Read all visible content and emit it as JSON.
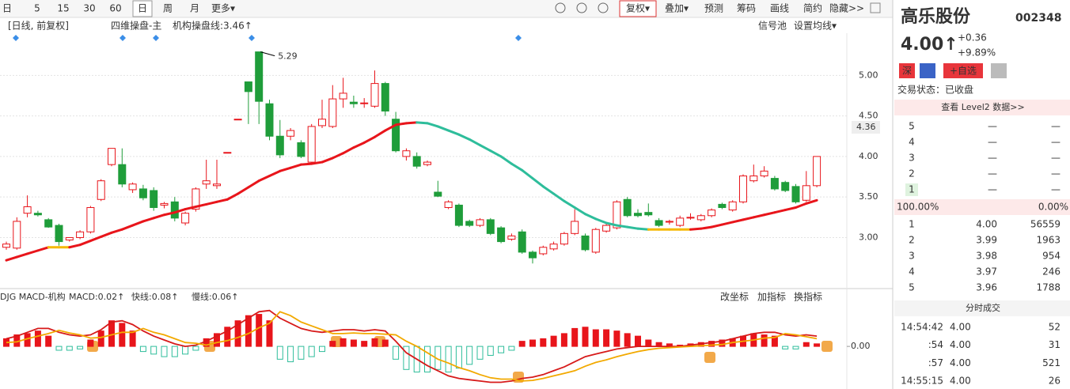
{
  "toolbar": {
    "periods": [
      "日",
      "5",
      "15",
      "30",
      "60",
      "日",
      "周",
      "月",
      "更多▾"
    ],
    "tools": [
      "复权▾",
      "叠加▾",
      "预测",
      "筹码",
      "画线",
      "简约",
      "隐藏>>"
    ]
  },
  "header": {
    "mode": "[日线, 前复权]",
    "indicator": "四维操盘-主",
    "ma_label": "机构操盘线:3.46↑",
    "right": [
      "信号池",
      "设置均线▾"
    ]
  },
  "macd_header": {
    "name": "DJG MACD-机构",
    "macd": "MACD:0.02↑",
    "fast": "快线:0.08↑",
    "slow": "慢线:0.06↑",
    "right": [
      "改坐标",
      "加指标",
      "换指标"
    ]
  },
  "chart_data": [
    {
      "type": "candlestick",
      "ylim": [
        2.4,
        5.52
      ],
      "yticks": [
        {
          "value": 5,
          "label": "5.00"
        },
        {
          "value": 4.5,
          "label": "4.50"
        },
        {
          "value": 4,
          "label": "4.00"
        },
        {
          "value": 3.5,
          "label": "3.50"
        },
        {
          "value": 3,
          "label": "3.00"
        }
      ],
      "grid": true,
      "cursor_price": {
        "value": 4.36,
        "label": "4.36"
      },
      "annotation": "5.29",
      "up_color": "#e8151b",
      "down_color": "#1f9d3a",
      "candles": [
        [
          2.88,
          2.95,
          2.85,
          2.92
        ],
        [
          2.87,
          3.25,
          2.85,
          3.2
        ],
        [
          3.3,
          3.52,
          3.25,
          3.38
        ],
        [
          3.3,
          3.33,
          3.26,
          3.28
        ],
        [
          3.22,
          3.24,
          3.12,
          3.13
        ],
        [
          3.15,
          3.17,
          2.9,
          2.95
        ],
        [
          2.97,
          3.0,
          2.95,
          3.0
        ],
        [
          3.0,
          3.09,
          2.98,
          3.07
        ],
        [
          3.07,
          3.39,
          3.05,
          3.37
        ],
        [
          3.47,
          3.72,
          3.45,
          3.7
        ],
        [
          3.9,
          4.1,
          3.88,
          4.1
        ],
        [
          3.9,
          4.1,
          3.62,
          3.66
        ],
        [
          3.59,
          3.68,
          3.55,
          3.66
        ],
        [
          3.6,
          3.65,
          3.46,
          3.49
        ],
        [
          3.58,
          3.62,
          3.33,
          3.37
        ],
        [
          3.4,
          3.44,
          3.36,
          3.42
        ],
        [
          3.44,
          3.5,
          3.2,
          3.24
        ],
        [
          3.18,
          3.32,
          3.15,
          3.3
        ],
        [
          3.35,
          3.62,
          3.32,
          3.6
        ],
        [
          3.66,
          3.96,
          3.6,
          3.7
        ],
        [
          3.64,
          3.96,
          3.6,
          3.66
        ],
        [
          4.05,
          4.05,
          4.05,
          4.05
        ],
        [
          4.46,
          4.46,
          4.46,
          4.46
        ],
        [
          4.92,
          4.92,
          4.4,
          4.8
        ],
        [
          5.29,
          5.29,
          4.4,
          4.68
        ],
        [
          4.65,
          4.7,
          4.2,
          4.25
        ],
        [
          4.25,
          4.45,
          3.98,
          4.02
        ],
        [
          4.25,
          4.35,
          4.2,
          4.32
        ],
        [
          4.17,
          4.2,
          3.98,
          4.0
        ],
        [
          3.93,
          4.4,
          3.9,
          4.37
        ],
        [
          4.38,
          4.7,
          4.35,
          4.46
        ],
        [
          4.37,
          4.88,
          4.35,
          4.71
        ],
        [
          4.71,
          4.97,
          4.6,
          4.78
        ],
        [
          4.67,
          4.75,
          4.6,
          4.65
        ],
        [
          4.66,
          4.72,
          4.6,
          4.66
        ],
        [
          4.62,
          5.06,
          4.6,
          4.9
        ],
        [
          4.9,
          4.92,
          4.5,
          4.56
        ],
        [
          4.46,
          4.55,
          4.05,
          4.07
        ],
        [
          4.0,
          4.1,
          3.95,
          4.07
        ],
        [
          4.0,
          4.05,
          3.85,
          3.88
        ],
        [
          3.9,
          3.95,
          3.88,
          3.93
        ],
        [
          3.56,
          3.7,
          3.5,
          3.51
        ],
        [
          3.37,
          3.46,
          3.35,
          3.44
        ],
        [
          3.4,
          3.42,
          3.13,
          3.15
        ],
        [
          3.2,
          3.22,
          3.13,
          3.15
        ],
        [
          3.15,
          3.24,
          3.13,
          3.22
        ],
        [
          3.22,
          3.24,
          3.03,
          3.05
        ],
        [
          3.12,
          3.14,
          2.93,
          2.95
        ],
        [
          2.98,
          3.05,
          2.96,
          3.02
        ],
        [
          3.07,
          3.1,
          2.8,
          2.82
        ],
        [
          2.82,
          2.84,
          2.68,
          2.75
        ],
        [
          2.8,
          2.9,
          2.78,
          2.88
        ],
        [
          2.86,
          2.95,
          2.84,
          2.92
        ],
        [
          2.92,
          3.07,
          2.9,
          3.05
        ],
        [
          3.05,
          3.35,
          3.03,
          3.2
        ],
        [
          3.02,
          3.05,
          2.83,
          2.85
        ],
        [
          2.82,
          3.12,
          2.8,
          3.1
        ],
        [
          3.08,
          3.17,
          3.06,
          3.15
        ],
        [
          3.12,
          3.46,
          3.1,
          3.44
        ],
        [
          3.47,
          3.5,
          3.25,
          3.27
        ],
        [
          3.3,
          3.35,
          3.25,
          3.27
        ],
        [
          3.31,
          3.42,
          3.26,
          3.28
        ],
        [
          3.21,
          3.24,
          3.13,
          3.15
        ],
        [
          3.19,
          3.22,
          3.16,
          3.2
        ],
        [
          3.15,
          3.27,
          3.13,
          3.24
        ],
        [
          3.24,
          3.3,
          3.22,
          3.25
        ],
        [
          3.22,
          3.29,
          3.2,
          3.27
        ],
        [
          3.27,
          3.36,
          3.25,
          3.34
        ],
        [
          3.41,
          3.43,
          3.35,
          3.37
        ],
        [
          3.34,
          3.46,
          3.32,
          3.44
        ],
        [
          3.44,
          3.78,
          3.42,
          3.76
        ],
        [
          3.7,
          3.9,
          3.68,
          3.76
        ],
        [
          3.76,
          3.88,
          3.74,
          3.82
        ],
        [
          3.73,
          3.76,
          3.58,
          3.6
        ],
        [
          3.68,
          3.7,
          3.56,
          3.58
        ],
        [
          3.63,
          3.66,
          3.42,
          3.44
        ],
        [
          3.46,
          3.82,
          3.44,
          3.64
        ],
        [
          3.64,
          4.0,
          3.62,
          4.0
        ]
      ],
      "ma": [
        2.72,
        2.76,
        2.8,
        2.84,
        2.88,
        2.88,
        2.88,
        2.91,
        2.96,
        3.01,
        3.06,
        3.1,
        3.15,
        3.2,
        3.24,
        3.28,
        3.31,
        3.35,
        3.38,
        3.41,
        3.44,
        3.47,
        3.54,
        3.62,
        3.7,
        3.76,
        3.82,
        3.86,
        3.9,
        3.91,
        3.93,
        3.98,
        4.04,
        4.11,
        4.17,
        4.24,
        4.32,
        4.39,
        4.41,
        4.42,
        4.41,
        4.37,
        4.32,
        4.27,
        4.21,
        4.14,
        4.07,
        4.0,
        3.91,
        3.83,
        3.73,
        3.63,
        3.54,
        3.45,
        3.37,
        3.29,
        3.23,
        3.18,
        3.15,
        3.13,
        3.11,
        3.1,
        3.1,
        3.1,
        3.1,
        3.1,
        3.11,
        3.13,
        3.16,
        3.19,
        3.22,
        3.25,
        3.28,
        3.31,
        3.34,
        3.37,
        3.42,
        3.46
      ],
      "ma_colors": {
        "up": "#e8151b",
        "down": "#2ebd9b",
        "flat": "#f5b800"
      }
    },
    {
      "type": "macd",
      "ylim": [
        -0.32,
        0.42
      ],
      "yticks": [
        {
          "value": 0,
          "label": "0.00"
        }
      ],
      "up_color": "#e8151b",
      "down_color": "#2ebd9b",
      "dif_color": "#d71a1a",
      "dea_color": "#f2a900",
      "hist": [
        0.06,
        0.09,
        0.1,
        0.12,
        0.08,
        -0.03,
        -0.03,
        -0.02,
        0.05,
        0.12,
        0.2,
        0.18,
        0.12,
        -0.04,
        -0.06,
        -0.08,
        -0.08,
        -0.06,
        -0.03,
        0.06,
        0.1,
        0.15,
        0.2,
        0.24,
        0.25,
        0.2,
        -0.1,
        -0.12,
        -0.1,
        -0.08,
        -0.04,
        0.04,
        0.06,
        0.05,
        0.04,
        0.06,
        0.05,
        -0.1,
        -0.18,
        -0.2,
        -0.2,
        -0.18,
        -0.2,
        -0.17,
        -0.14,
        -0.1,
        -0.07,
        -0.05,
        -0.03,
        0.04,
        0.05,
        0.06,
        0.08,
        0.1,
        0.14,
        0.15,
        0.13,
        0.13,
        0.12,
        0.1,
        0.08,
        0.05,
        0.03,
        0.02,
        0.01,
        0.02,
        0.03,
        0.04,
        0.05,
        0.06,
        0.08,
        0.1,
        0.09,
        0.08,
        -0.02,
        -0.02,
        0.03,
        0.02
      ],
      "dif": [
        0.06,
        0.08,
        0.11,
        0.14,
        0.14,
        0.11,
        0.09,
        0.08,
        0.09,
        0.13,
        0.19,
        0.2,
        0.17,
        0.12,
        0.08,
        0.05,
        0.02,
        0.0,
        0.01,
        0.04,
        0.08,
        0.12,
        0.17,
        0.22,
        0.27,
        0.28,
        0.22,
        0.18,
        0.14,
        0.12,
        0.11,
        0.12,
        0.13,
        0.13,
        0.12,
        0.13,
        0.12,
        0.04,
        -0.05,
        -0.1,
        -0.15,
        -0.19,
        -0.23,
        -0.25,
        -0.26,
        -0.27,
        -0.28,
        -0.28,
        -0.27,
        -0.25,
        -0.24,
        -0.22,
        -0.19,
        -0.16,
        -0.12,
        -0.08,
        -0.06,
        -0.04,
        -0.02,
        -0.01,
        0.0,
        0.0,
        0.0,
        0.0,
        0.0,
        0.01,
        0.02,
        0.03,
        0.04,
        0.06,
        0.08,
        0.1,
        0.11,
        0.11,
        0.09,
        0.08,
        0.09,
        0.08
      ],
      "dea": [
        0.03,
        0.035,
        0.06,
        0.08,
        0.1,
        0.125,
        0.105,
        0.09,
        0.065,
        0.07,
        0.09,
        0.11,
        0.11,
        0.14,
        0.11,
        0.09,
        0.06,
        0.03,
        0.025,
        0.01,
        0.03,
        0.045,
        0.07,
        0.1,
        0.145,
        0.18,
        0.27,
        0.24,
        0.19,
        0.16,
        0.13,
        0.1,
        0.1,
        0.105,
        0.1,
        0.1,
        0.095,
        0.09,
        0.04,
        0.0,
        -0.05,
        -0.1,
        -0.13,
        -0.165,
        -0.19,
        -0.22,
        -0.245,
        -0.255,
        -0.255,
        -0.27,
        -0.265,
        -0.25,
        -0.23,
        -0.21,
        -0.19,
        -0.155,
        -0.125,
        -0.105,
        -0.08,
        -0.06,
        -0.04,
        -0.025,
        -0.015,
        -0.01,
        -0.005,
        0.0,
        0.005,
        0.01,
        0.015,
        0.03,
        0.04,
        0.05,
        0.065,
        0.07,
        0.1,
        0.09,
        0.075,
        0.06
      ]
    }
  ],
  "quote": {
    "name": "高乐股份",
    "code": "002348",
    "price": "4.00↑",
    "change": "+0.36",
    "pct": "+9.89%",
    "buttons": [
      "深",
      "+自选"
    ],
    "status": "交易状态：已收盘",
    "level2": "查看 Level2 数据>>",
    "asks": [
      [
        "5",
        "—",
        "—"
      ],
      [
        "4",
        "—",
        "—"
      ],
      [
        "3",
        "—",
        "—"
      ],
      [
        "2",
        "—",
        "—"
      ],
      [
        "1",
        "—",
        "—"
      ]
    ],
    "ratio": [
      "100.00%",
      "0.00%"
    ],
    "bids": [
      [
        "1",
        "4.00",
        "56559"
      ],
      [
        "2",
        "3.99",
        "1963"
      ],
      [
        "3",
        "3.98",
        "954"
      ],
      [
        "4",
        "3.97",
        "246"
      ],
      [
        "5",
        "3.96",
        "1788"
      ]
    ],
    "trades_title": "分时成交",
    "trades": [
      [
        "14:54:42",
        "4.00",
        "52"
      ],
      [
        ":54",
        "4.00",
        "31"
      ],
      [
        ":57",
        "4.00",
        "521"
      ],
      [
        "14:55:15",
        "4.00",
        "26"
      ]
    ]
  }
}
